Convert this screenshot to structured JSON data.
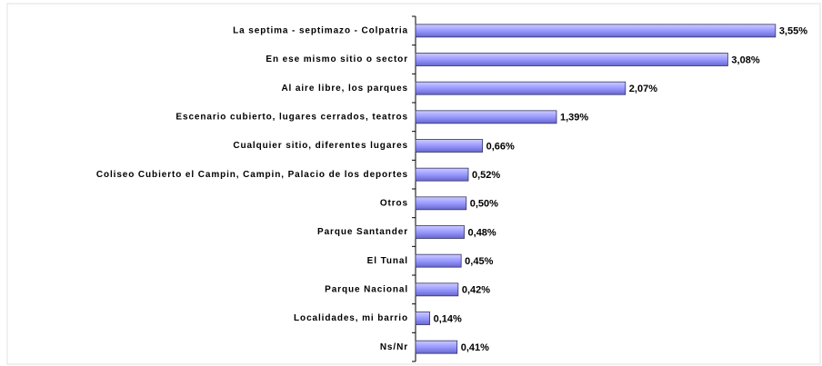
{
  "chart_data": {
    "type": "bar",
    "orientation": "horizontal",
    "categories": [
      "La septima - septimazo - Colpatria",
      "En ese mismo sitio o sector",
      "Al aire libre, los parques",
      "Escenario cubierto, lugares cerrados, teatros",
      "Cualquier sitio, diferentes lugares",
      "Coliseo Cubierto el Campin, Campin, Palacio de los deportes",
      "Otros",
      "Parque Santander",
      "El Tunal",
      "Parque Nacional",
      "Localidades, mi barrio",
      "Ns/Nr"
    ],
    "values": [
      3.55,
      3.08,
      2.07,
      1.39,
      0.66,
      0.52,
      0.5,
      0.48,
      0.45,
      0.42,
      0.14,
      0.41
    ],
    "value_labels": [
      "3,55%",
      "3,08%",
      "2,07%",
      "1,39%",
      "0,66%",
      "0,52%",
      "0,50%",
      "0,48%",
      "0,45%",
      "0,42%",
      "0,14%",
      "0,41%"
    ],
    "color": "#9999ff",
    "xlim": [
      0,
      4
    ]
  }
}
